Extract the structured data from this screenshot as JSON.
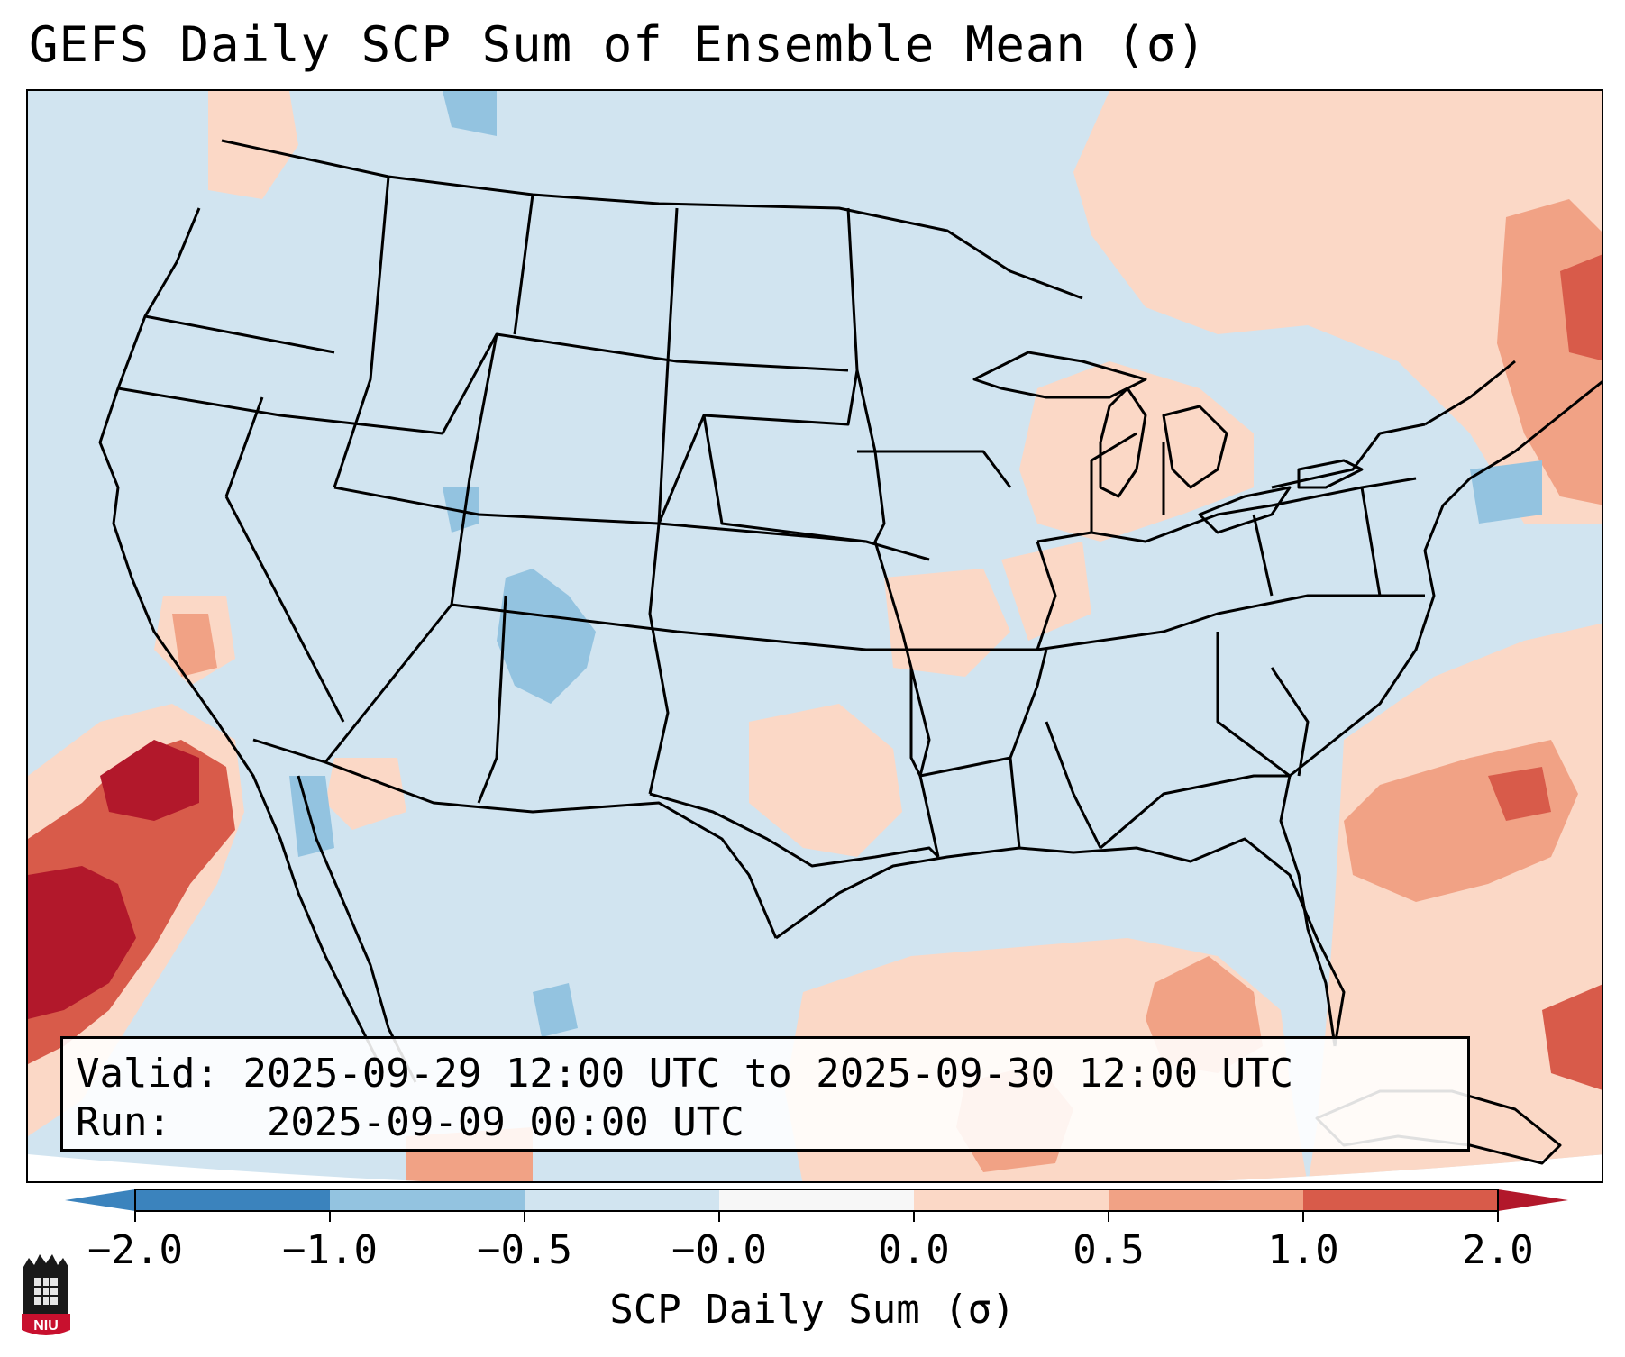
{
  "title": "GEFS Daily SCP Sum of Ensemble Mean (σ)",
  "info": {
    "valid_label": "Valid:",
    "valid_value": "2025-09-29 12:00 UTC to 2025-09-30 12:00 UTC",
    "run_label": "Run:",
    "run_value": "2025-09-09 00:00 UTC"
  },
  "colorbar": {
    "label": "SCP Daily Sum (σ)",
    "ticks": [
      "−2.0",
      "−1.0",
      "−0.5",
      "−0.0",
      "0.0",
      "0.5",
      "1.0",
      "2.0"
    ],
    "colors": [
      "#3b83bd",
      "#93c3e0",
      "#d1e4f0",
      "#f7f7f7",
      "#fbd8c6",
      "#f1a285",
      "#d85b4a",
      "#b2182b"
    ]
  },
  "logo": {
    "text": "NIU",
    "color": "#c8102e"
  },
  "map": {
    "background": "#d1e4f0",
    "regions": [
      {
        "name": "northeast-positive",
        "category": 1
      },
      {
        "name": "great-lakes-positive",
        "category": 0
      },
      {
        "name": "atlantic-positive",
        "category": 1
      },
      {
        "name": "pacific-strong-positive",
        "category": 2
      },
      {
        "name": "gulf-positive",
        "category": 1
      },
      {
        "name": "colorado-negative",
        "category": -1
      }
    ]
  }
}
